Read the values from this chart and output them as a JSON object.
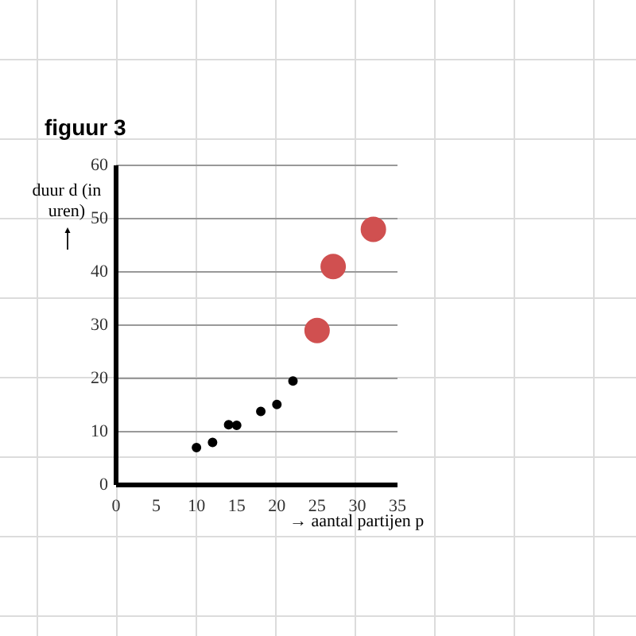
{
  "chart_data": {
    "type": "scatter",
    "title": "figuur 3",
    "xlabel": "→ aantal partijen p",
    "ylabel": "duur d (in uren)",
    "series": [
      {
        "color": "#000000",
        "x": [
          10,
          12,
          14,
          15,
          18,
          20,
          22
        ],
        "values": [
          7,
          8,
          11.3,
          11.2,
          13.8,
          15.1,
          19.5
        ]
      },
      {
        "color": "#d05050",
        "x": [
          25,
          27,
          32
        ],
        "values": [
          29,
          41,
          48
        ]
      }
    ],
    "xlim": [
      0,
      35
    ],
    "xticks": [
      0,
      5,
      10,
      15,
      20,
      25,
      30,
      35
    ],
    "ylim": [
      0,
      60
    ],
    "yticks": [
      0,
      10,
      20,
      30,
      40,
      50,
      60
    ],
    "grid": "y",
    "marker": "circle"
  }
}
